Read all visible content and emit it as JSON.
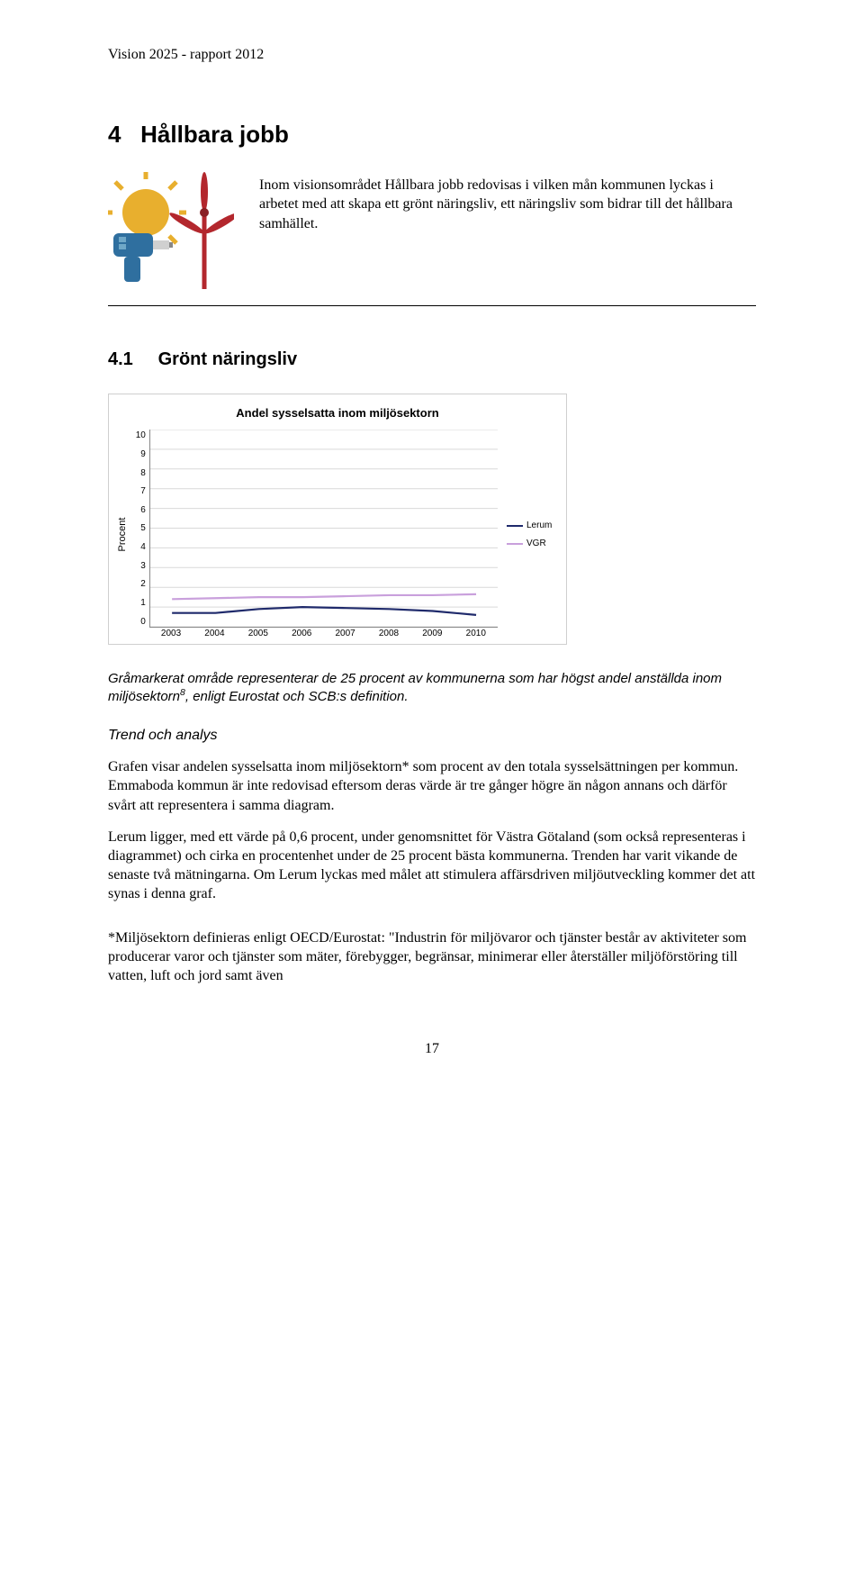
{
  "header": "Vision 2025 - rapport 2012",
  "section": {
    "number": "4",
    "title": "Hållbara jobb",
    "intro": "Inom visionsområdet Hållbara jobb redovisas i vilken mån kommunen lyckas i arbetet med att skapa ett grönt näringsliv, ett näringsliv som bidrar till det hållbara samhället."
  },
  "icon": {
    "sun_color": "#e8af2e",
    "turbine_color": "#b3272d",
    "drill_color": "#2f6f9f",
    "bg": "#ffffff"
  },
  "subsection": {
    "number": "4.1",
    "title": "Grönt näringsliv"
  },
  "chart": {
    "type": "line",
    "title": "Andel sysselsatta inom miljösektorn",
    "y_label": "Procent",
    "ylim": [
      0,
      10
    ],
    "y_ticks": [
      0,
      1,
      2,
      3,
      4,
      5,
      6,
      7,
      8,
      9,
      10
    ],
    "x_labels": [
      "2003",
      "2004",
      "2005",
      "2006",
      "2007",
      "2008",
      "2009",
      "2010"
    ],
    "grid_color": "#d9d9d9",
    "axis_color": "#808080",
    "background_color": "#ffffff",
    "title_fontsize": 13,
    "label_fontsize": 11,
    "tick_fontsize": 10,
    "series": [
      {
        "name": "Lerum",
        "color": "#1f2a6b",
        "values": [
          0.7,
          0.7,
          0.9,
          1.0,
          0.95,
          0.9,
          0.8,
          0.6
        ]
      },
      {
        "name": "VGR",
        "color": "#c9a0dc",
        "values": [
          1.4,
          1.45,
          1.5,
          1.5,
          1.55,
          1.6,
          1.6,
          1.65
        ]
      }
    ]
  },
  "caption_html": "Gråmarkerat område representerar de 25 procent av kommunerna som har högst andel anställda inom miljösektorn<sup>8</sup>, enligt Eurostat och SCB:s definition.",
  "trend_heading": "Trend och analys",
  "paragraphs": [
    "Grafen visar andelen sysselsatta inom miljösektorn* som procent av den totala sysselsättningen per kommun. Emmaboda kommun är inte redovisad eftersom deras värde är tre gånger högre än någon annans och därför svårt att representera i samma diagram.",
    "Lerum ligger, med ett värde på 0,6 procent, under genomsnittet för Västra Götaland (som också representeras i diagrammet) och cirka en procentenhet under de 25 procent bästa kommunerna. Trenden har varit vikande de senaste två mätningarna. Om Lerum lyckas med målet att stimulera affärsdriven miljöutveckling kommer det att synas i denna graf.",
    "*Miljösektorn definieras enligt OECD/Eurostat: \"Industrin för miljövaror och tjänster består av aktiviteter som producerar varor och tjänster som mäter, förebygger, begränsar, minimerar eller återställer miljöförstöring till vatten, luft och jord samt även"
  ],
  "page_number": "17"
}
